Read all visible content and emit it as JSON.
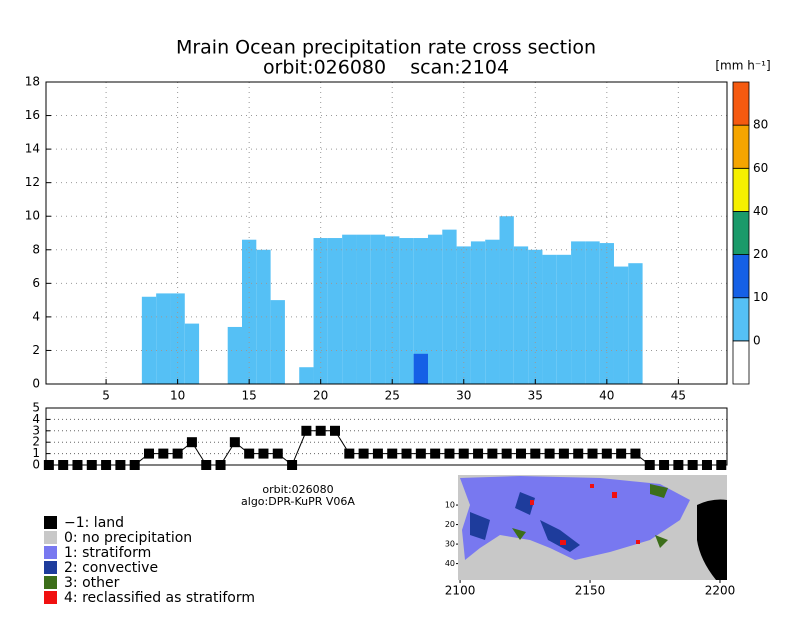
{
  "chart_data": [
    {
      "type": "cross_section",
      "title": "Mrain Ocean precipitation rate cross section",
      "subtitle": "orbit:026080    scan:2104",
      "x": [
        1,
        2,
        3,
        4,
        5,
        6,
        7,
        8,
        9,
        10,
        11,
        12,
        13,
        14,
        15,
        16,
        17,
        18,
        19,
        20,
        21,
        22,
        23,
        24,
        25,
        26,
        27,
        28,
        29,
        30,
        31,
        32,
        33,
        34,
        35,
        36,
        37,
        38,
        39,
        40,
        41,
        42,
        43,
        44,
        45,
        46,
        47,
        48
      ],
      "values": [
        0,
        0,
        0,
        0,
        0,
        0,
        0,
        5.2,
        5.4,
        5.4,
        3.6,
        0,
        0,
        3.4,
        8.6,
        8.0,
        5.0,
        0,
        1.0,
        8.7,
        8.7,
        8.9,
        8.9,
        8.9,
        8.8,
        8.7,
        8.7,
        8.9,
        9.2,
        8.2,
        8.5,
        8.6,
        10.0,
        8.2,
        8.0,
        7.7,
        7.7,
        8.5,
        8.5,
        8.4,
        7.0,
        7.2,
        0,
        0,
        0,
        0,
        0,
        0
      ],
      "color": "#55c0f5",
      "cells": [
        {
          "x": 27,
          "top": 1.8,
          "color": "#1560e6"
        }
      ],
      "xlim": [
        0.8,
        48.4
      ],
      "ylim": [
        0,
        18
      ],
      "xticks": [
        5,
        10,
        15,
        20,
        25,
        30,
        35,
        40,
        45
      ],
      "yticks": [
        0,
        2,
        4,
        6,
        8,
        10,
        12,
        14,
        16,
        18
      ],
      "grid": true,
      "colorbar": {
        "unit": "[mm h⁻¹]",
        "labels": [
          0,
          10,
          20,
          40,
          60,
          80
        ],
        "colors": [
          "#ffffff",
          "#55c0f5",
          "#1560e6",
          "#1a9a6a",
          "#f5f000",
          "#f5a500",
          "#f55a10"
        ]
      }
    },
    {
      "type": "step_markers",
      "x": [
        1,
        2,
        3,
        4,
        5,
        6,
        7,
        8,
        9,
        10,
        11,
        12,
        13,
        14,
        15,
        16,
        17,
        18,
        19,
        20,
        21,
        22,
        23,
        24,
        25,
        26,
        27,
        28,
        29,
        30,
        31,
        32,
        33,
        34,
        35,
        36,
        37,
        38,
        39,
        40,
        41,
        42,
        43,
        44,
        45,
        46,
        47,
        48
      ],
      "values": [
        0,
        0,
        0,
        0,
        0,
        0,
        0,
        1,
        1,
        1,
        2,
        0,
        0,
        2,
        1,
        1,
        1,
        0,
        3,
        3,
        3,
        1,
        1,
        1,
        1,
        1,
        1,
        1,
        1,
        1,
        1,
        1,
        1,
        1,
        1,
        1,
        1,
        1,
        1,
        1,
        1,
        1,
        0,
        0,
        0,
        0,
        0,
        0
      ],
      "color": "#000000",
      "xlim": [
        0.8,
        48.4
      ],
      "ylim": [
        0,
        5
      ],
      "yticks": [
        0,
        1,
        2,
        3,
        4,
        5
      ],
      "grid": true
    },
    {
      "type": "map",
      "xlim": [
        2099.2,
        2202.7
      ],
      "ylim": [
        -5.4,
        48.4
      ],
      "xticks": [
        2100,
        2150,
        2200
      ],
      "yticks": [
        10,
        20,
        30,
        40
      ]
    }
  ],
  "info": {
    "orbit": "orbit:026080",
    "algo": "algo:DPR-KuPR V06A"
  },
  "legend": [
    {
      "label": "−1: land",
      "color": "#000000"
    },
    {
      "label": "0: no precipitation",
      "color": "#c8c8c8"
    },
    {
      "label": "1: stratiform",
      "color": "#7878f0"
    },
    {
      "label": "2: convective",
      "color": "#1e3c9c"
    },
    {
      "label": "3: other",
      "color": "#3c6e1a"
    },
    {
      "label": "4: reclassified as stratiform",
      "color": "#f01010"
    }
  ]
}
